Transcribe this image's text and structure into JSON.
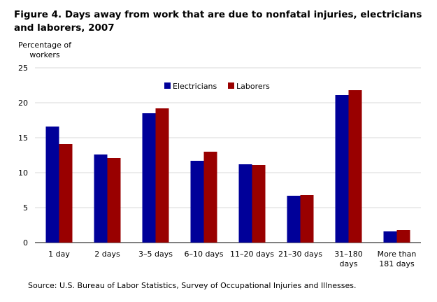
{
  "chart_data": {
    "type": "bar",
    "title": "Figure 4. Days away from work that are due to nonfatal injuries, electricians and laborers, 2007",
    "ylabel_lines": [
      "Percentage of",
      "workers"
    ],
    "xlabel": "",
    "ylim": [
      0,
      25
    ],
    "yticks": [
      0,
      5,
      10,
      15,
      20,
      25
    ],
    "grid": true,
    "legend_position": "top-center",
    "categories": [
      [
        "1 day"
      ],
      [
        "2 days"
      ],
      [
        "3–5 days"
      ],
      [
        "6–10 days"
      ],
      [
        "11–20 days"
      ],
      [
        "21–30 days"
      ],
      [
        "31–180",
        "days"
      ],
      [
        "More than",
        "181 days"
      ]
    ],
    "series": [
      {
        "name": "Electricians",
        "color": "#000099",
        "values": [
          16.6,
          12.6,
          18.5,
          11.7,
          11.2,
          6.7,
          21.1,
          1.6
        ]
      },
      {
        "name": "Laborers",
        "color": "#990000",
        "values": [
          14.1,
          12.1,
          19.2,
          13.0,
          11.1,
          6.8,
          21.8,
          1.8
        ]
      }
    ]
  },
  "source": "Source: U.S. Bureau of Labor Statistics, Survey of Occupational Injuries and Illnesses."
}
